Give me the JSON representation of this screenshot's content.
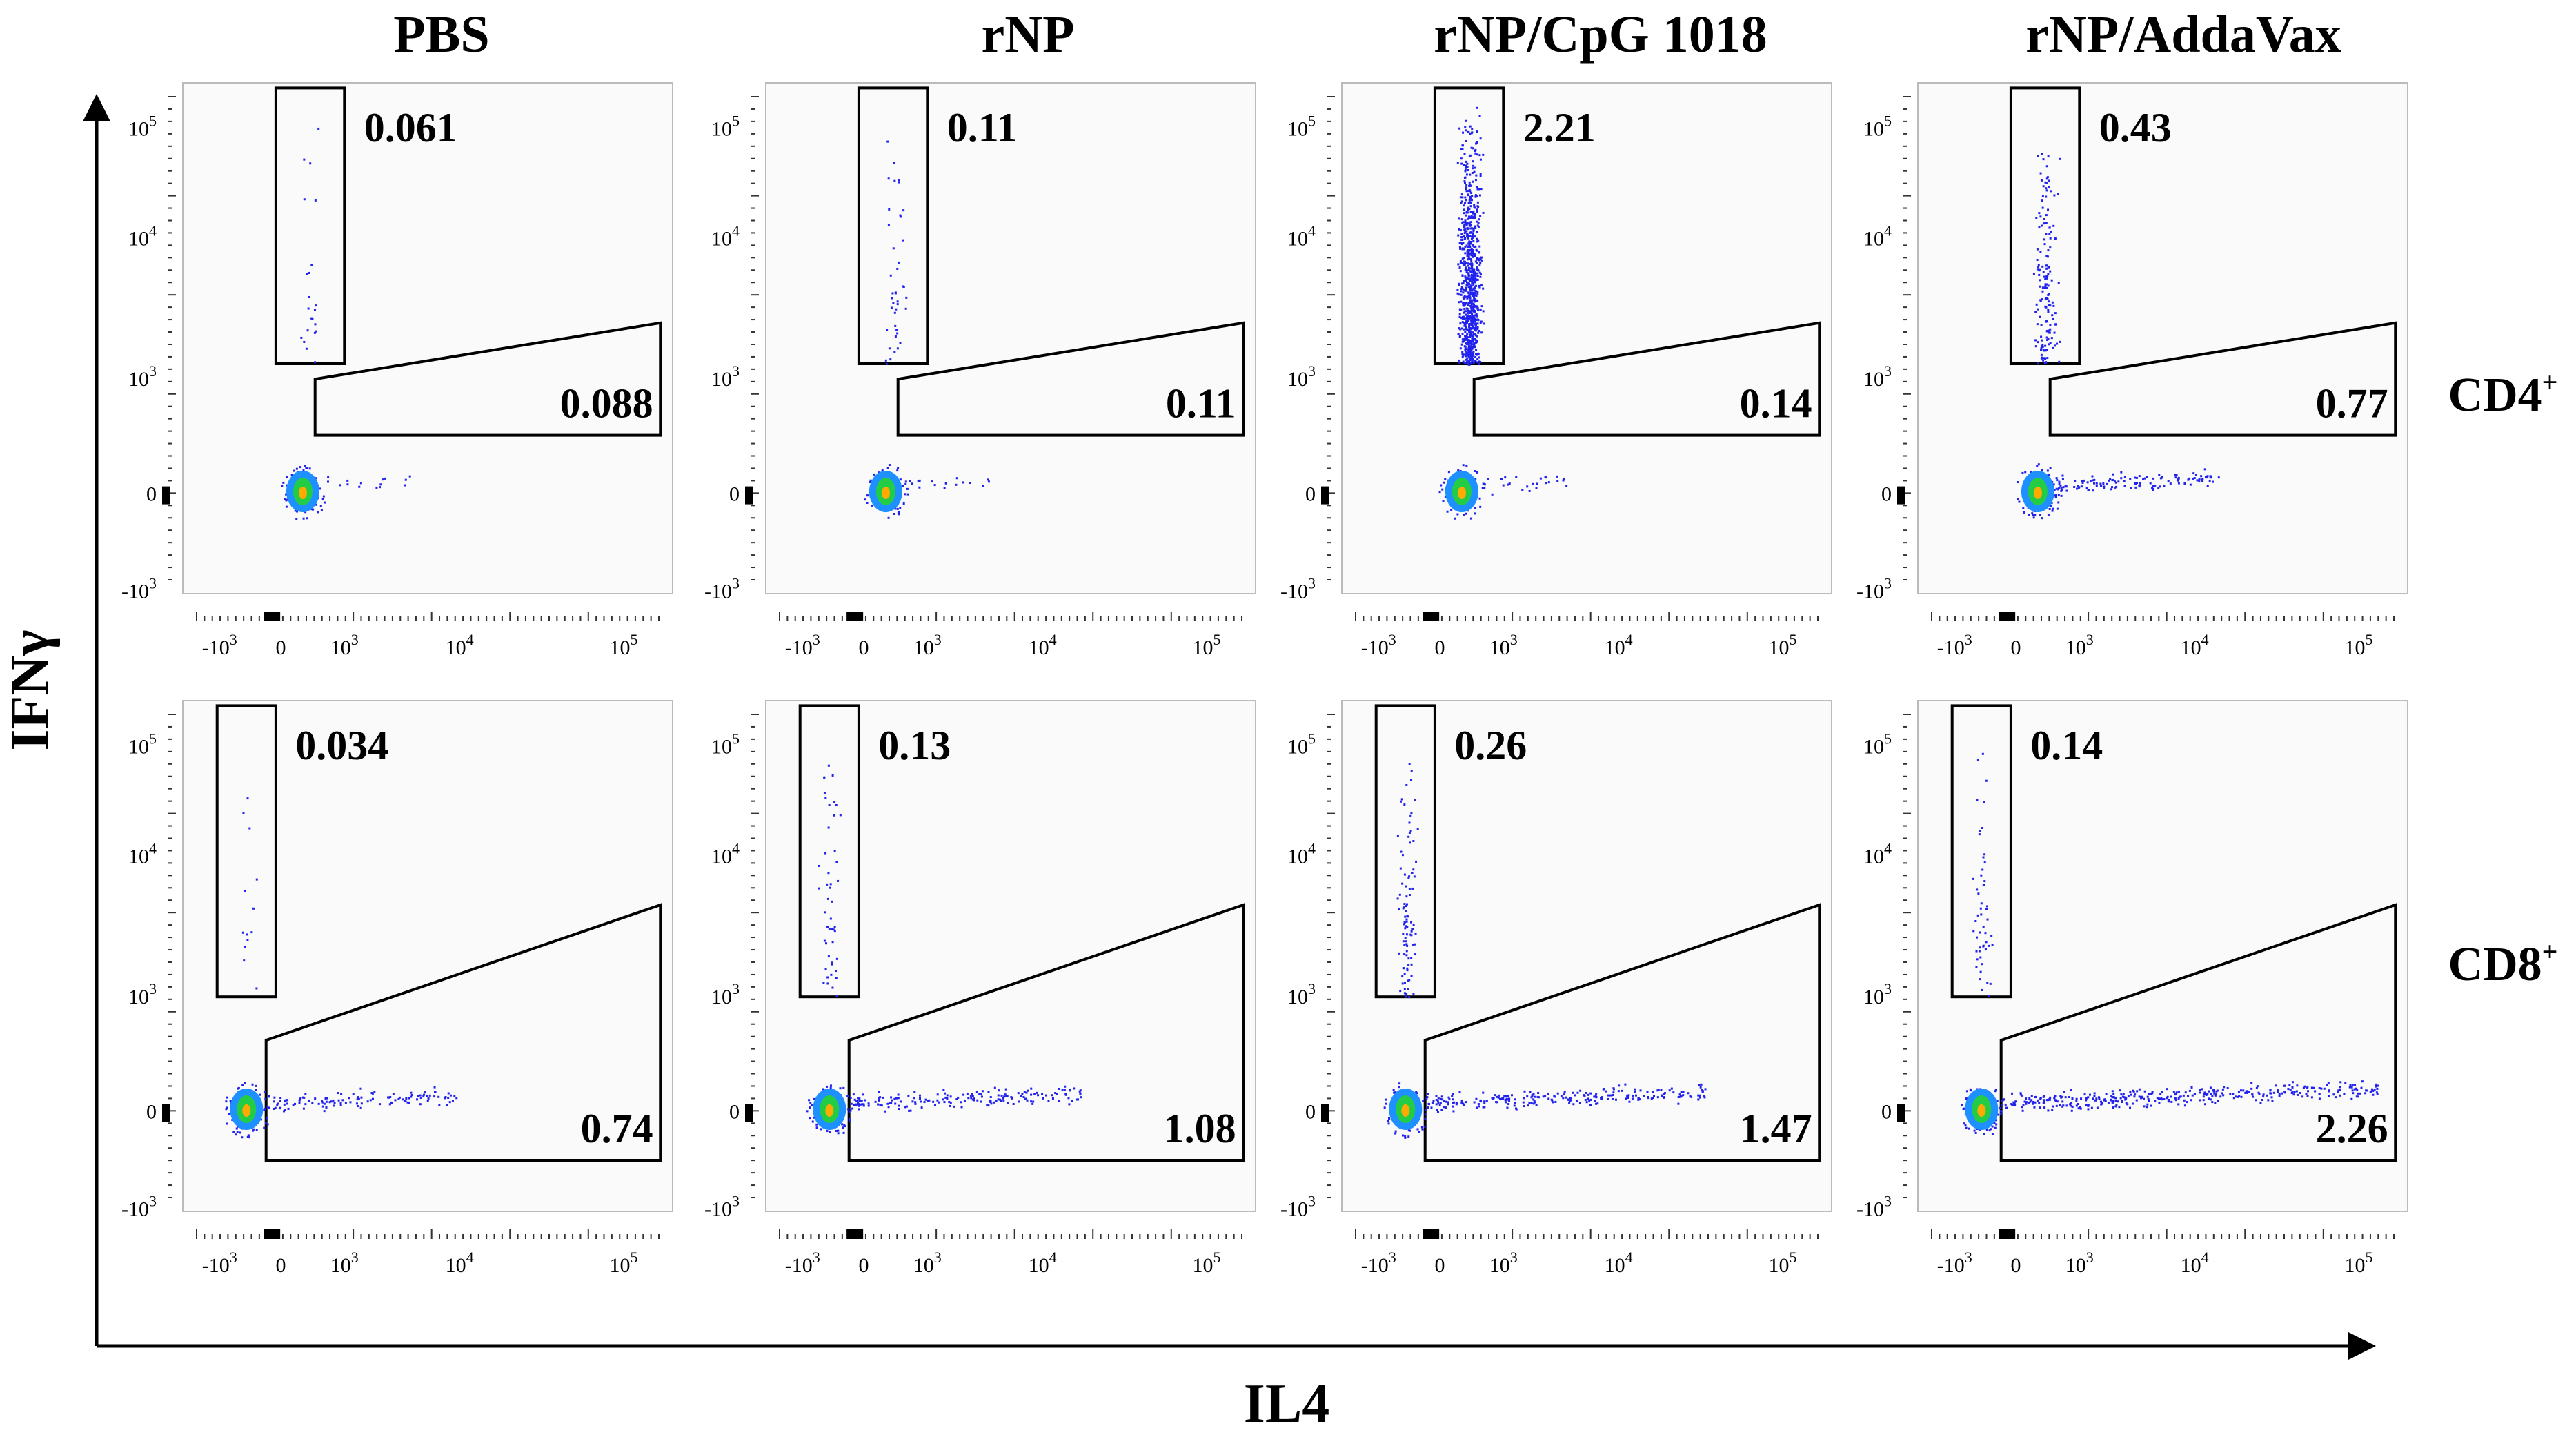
{
  "chart_data": {
    "type": "scatter",
    "title": "",
    "xlabel": "IL4",
    "ylabel": "IFNγ",
    "columns": [
      "PBS",
      "rNP",
      "rNP/CpG 1018",
      "rNP/AddaVax"
    ],
    "rows": [
      "CD4",
      "CD8"
    ],
    "row_superscript": "+",
    "x_ticks": [
      {
        "base": "-10",
        "exp": "3"
      },
      {
        "base": "0",
        "exp": ""
      },
      {
        "base": "10",
        "exp": "3"
      },
      {
        "base": "10",
        "exp": "4"
      },
      {
        "base": "10",
        "exp": "5"
      }
    ],
    "y_ticks": [
      {
        "base": "10",
        "exp": "5"
      },
      {
        "base": "10",
        "exp": "4"
      },
      {
        "base": "10",
        "exp": "3"
      },
      {
        "base": "0",
        "exp": ""
      },
      {
        "base": "-10",
        "exp": "3"
      }
    ],
    "gate_values": [
      {
        "row": "CD4",
        "column": "PBS",
        "ifng_gate_pct": "0.061",
        "il4_gate_pct": "0.088"
      },
      {
        "row": "CD4",
        "column": "rNP",
        "ifng_gate_pct": "0.11",
        "il4_gate_pct": "0.11"
      },
      {
        "row": "CD4",
        "column": "rNP/CpG 1018",
        "ifng_gate_pct": "2.21",
        "il4_gate_pct": "0.14"
      },
      {
        "row": "CD4",
        "column": "rNP/AddaVax",
        "ifng_gate_pct": "0.43",
        "il4_gate_pct": "0.77"
      },
      {
        "row": "CD8",
        "column": "PBS",
        "ifng_gate_pct": "0.034",
        "il4_gate_pct": "0.74"
      },
      {
        "row": "CD8",
        "column": "rNP",
        "ifng_gate_pct": "0.13",
        "il4_gate_pct": "1.08"
      },
      {
        "row": "CD8",
        "column": "rNP/CpG 1018",
        "ifng_gate_pct": "0.26",
        "il4_gate_pct": "1.47"
      },
      {
        "row": "CD8",
        "column": "rNP/AddaVax",
        "ifng_gate_pct": "0.14",
        "il4_gate_pct": "2.26"
      }
    ],
    "colors": {
      "dots": "#2222ee",
      "core_outer": "#1e90ff",
      "core_mid": "#22cc44",
      "core_inner": "#ffaa00",
      "gate": "#000000"
    }
  }
}
